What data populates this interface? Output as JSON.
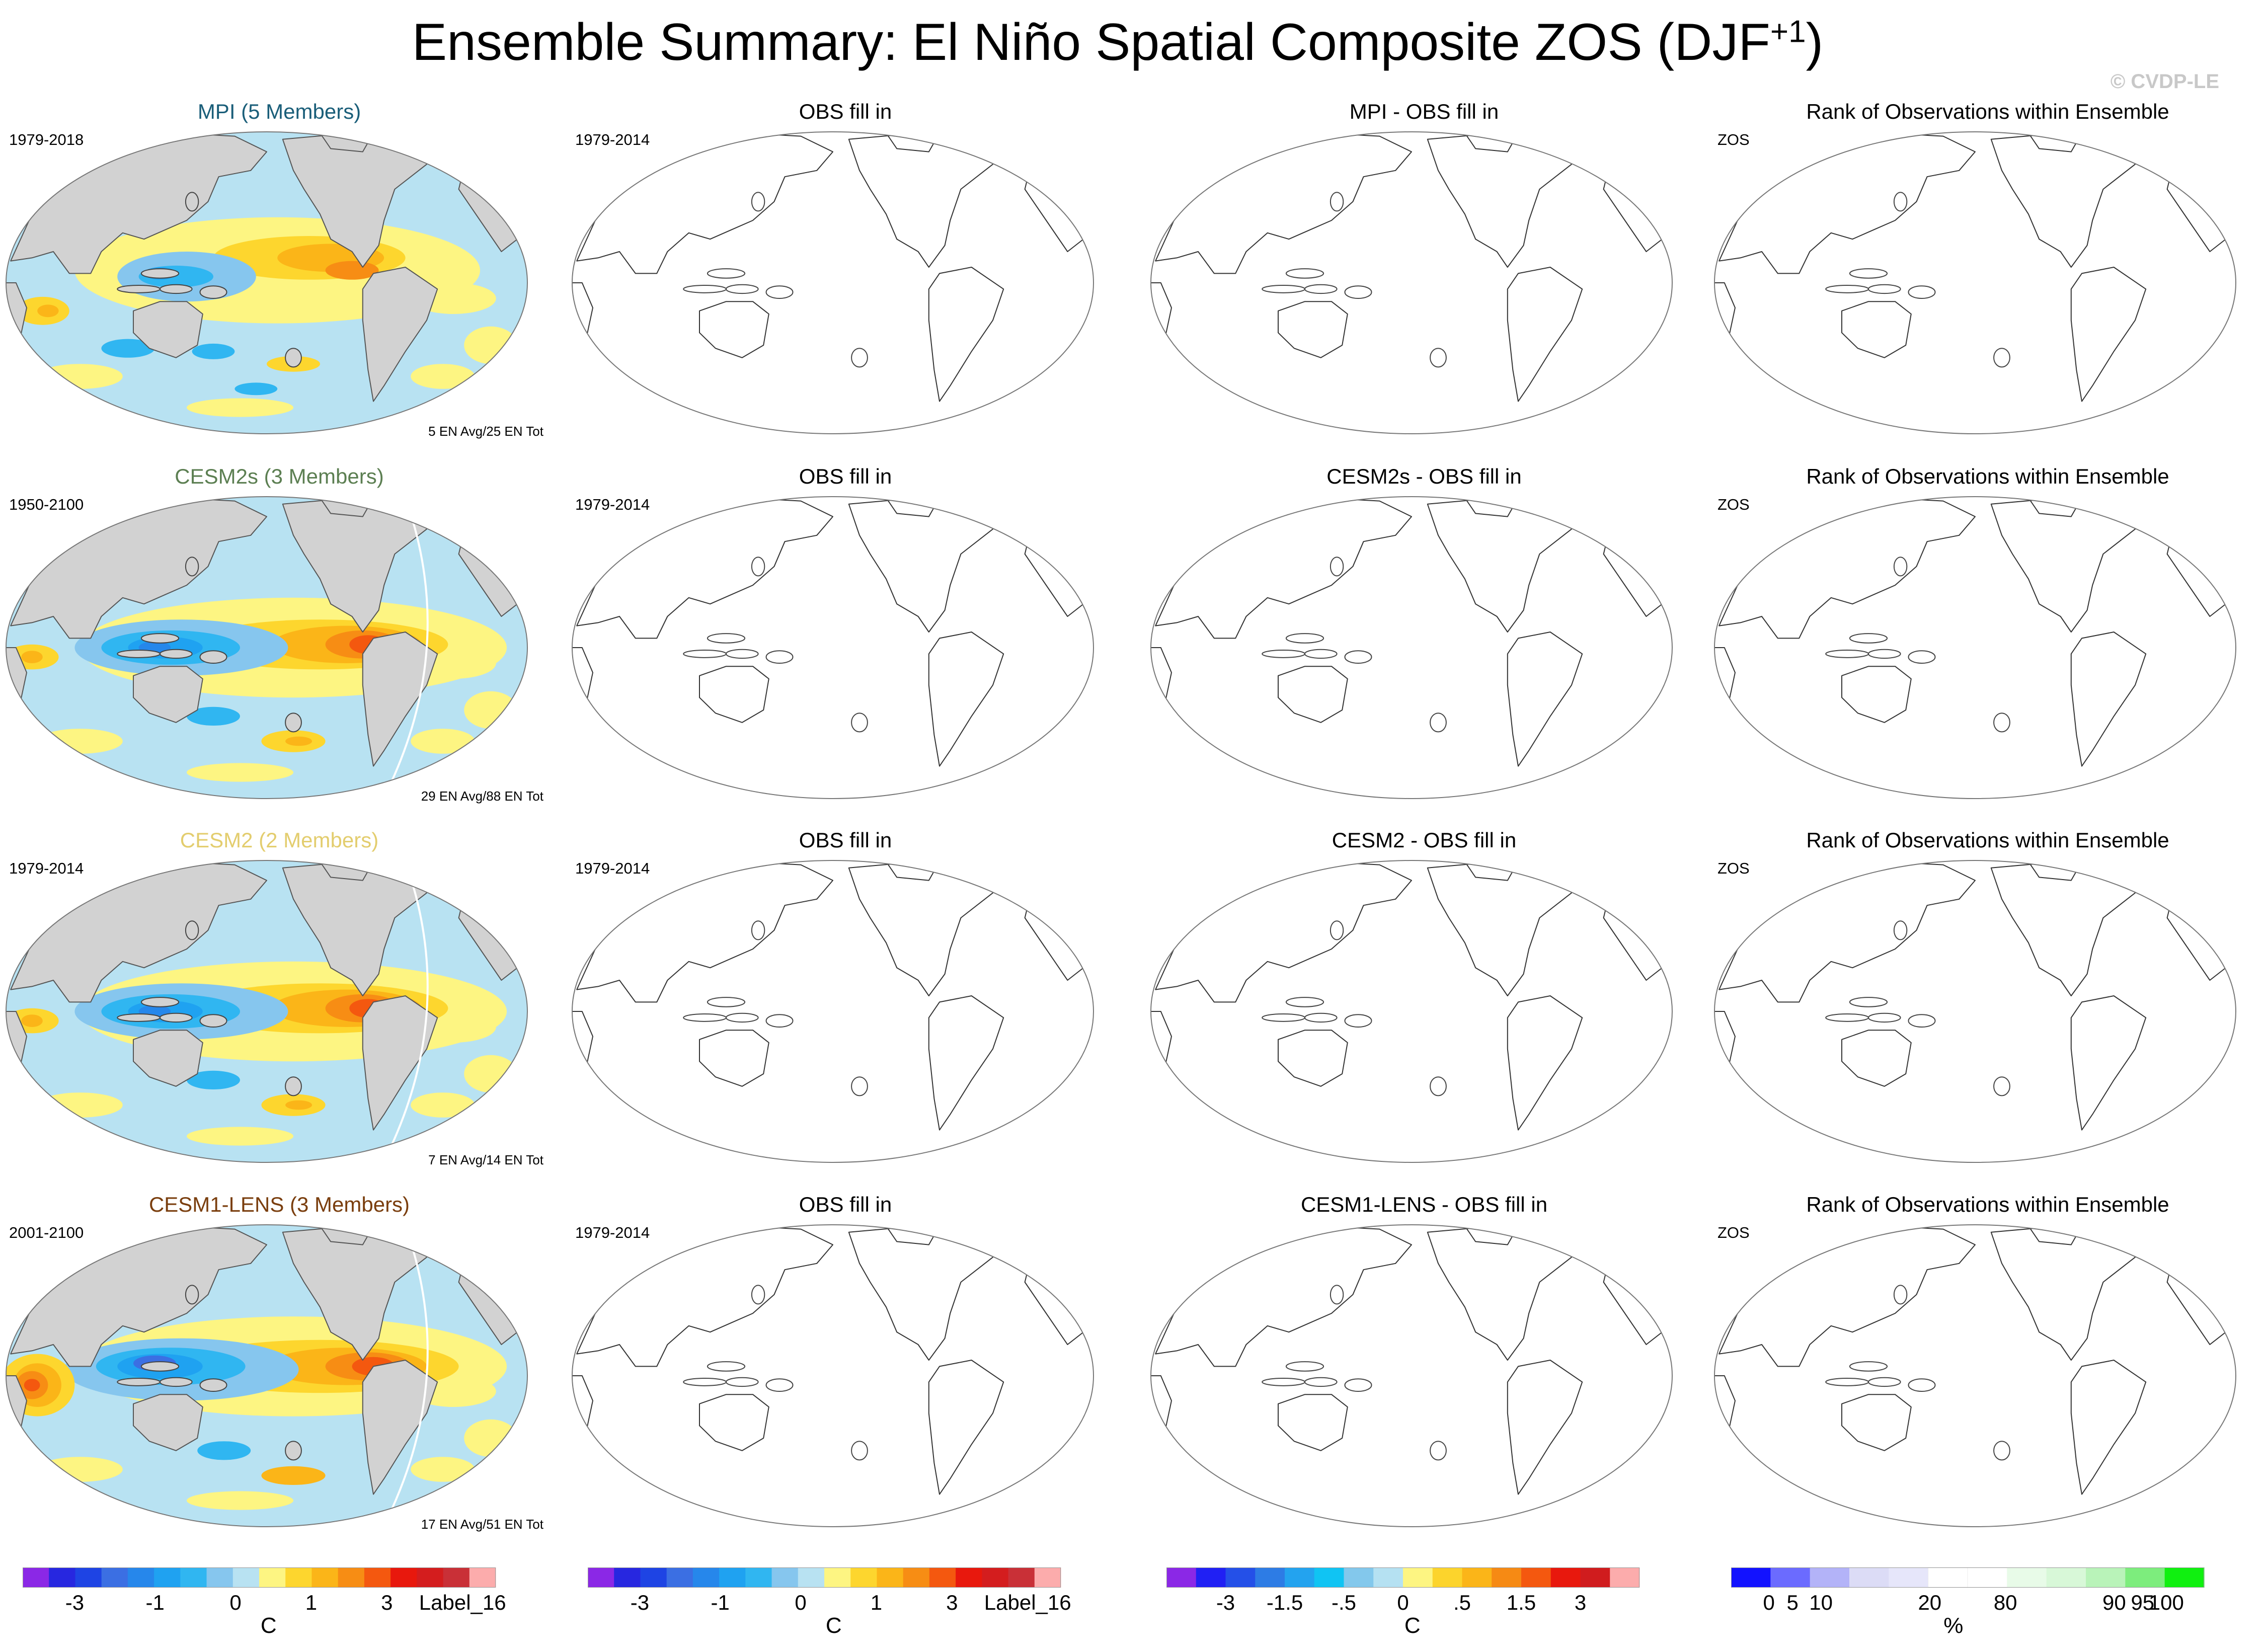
{
  "title": {
    "main": "Ensemble Summary: El Niño Spatial Composite ZOS (DJF",
    "sup": "+1",
    "close": ")"
  },
  "copyright": "© CVDP-LE",
  "chart_data": {
    "type": "panel-grid",
    "rows": [
      {
        "ensemble": {
          "title": "MPI (5 Members)",
          "color": "#1a5e79",
          "period": "1979-2018",
          "count": "5 EN Avg/25 EN Tot",
          "pattern": "weak"
        },
        "obs": {
          "title": "OBS fill in",
          "period": "1979-2014"
        },
        "diff": {
          "title": "MPI - OBS fill in"
        },
        "rank": {
          "title": "Rank of Observations within Ensemble",
          "label": "ZOS"
        }
      },
      {
        "ensemble": {
          "title": "CESM2s (3 Members)",
          "color": "#5c7f52",
          "period": "1950-2100",
          "count": "29 EN Avg/88 EN Tot",
          "pattern": "strong"
        },
        "obs": {
          "title": "OBS fill in",
          "period": "1979-2014"
        },
        "diff": {
          "title": "CESM2s - OBS fill in"
        },
        "rank": {
          "title": "Rank of Observations within Ensemble",
          "label": "ZOS"
        }
      },
      {
        "ensemble": {
          "title": "CESM2 (2 Members)",
          "color": "#e3cd6e",
          "period": "1979-2014",
          "count": "7 EN Avg/14 EN Tot",
          "pattern": "strong"
        },
        "obs": {
          "title": "OBS fill in",
          "period": "1979-2014"
        },
        "diff": {
          "title": "CESM2 - OBS fill in"
        },
        "rank": {
          "title": "Rank of Observations within Ensemble",
          "label": "ZOS"
        }
      },
      {
        "ensemble": {
          "title": "CESM1-LENS (3 Members)",
          "color": "#7a3e0e",
          "period": "2001-2100",
          "count": "17 EN Avg/51 EN Tot",
          "pattern": "very-strong"
        },
        "obs": {
          "title": "OBS fill in",
          "period": "1979-2014"
        },
        "diff": {
          "title": "CESM1-LENS - OBS fill in"
        },
        "rank": {
          "title": "Rank of Observations within Ensemble",
          "label": "ZOS"
        }
      }
    ],
    "colorbars": [
      {
        "units": "C",
        "labels": [
          "-3",
          "-1",
          "0",
          "1",
          "3",
          "Label_16"
        ],
        "colors": [
          "#8b28e6",
          "#2727e0",
          "#1e44e4",
          "#3b6fe3",
          "#2687eb",
          "#1fa2f1",
          "#30b6f1",
          "#86c6ee",
          "#b8e2f2",
          "#fdf582",
          "#fdd62e",
          "#fbb518",
          "#f78d14",
          "#f4580f",
          "#e8180d",
          "#d41d1e",
          "#c93037",
          "#fcacac"
        ]
      },
      {
        "units": "C",
        "labels": [
          "-3",
          "-1",
          "0",
          "1",
          "3",
          "Label_16"
        ],
        "colors": [
          "#8b28e6",
          "#2727e0",
          "#1e44e4",
          "#3b6fe3",
          "#2687eb",
          "#1fa2f1",
          "#30b6f1",
          "#86c6ee",
          "#b8e2f2",
          "#fdf582",
          "#fdd62e",
          "#fbb518",
          "#f78d14",
          "#f4580f",
          "#e8180d",
          "#d41d1e",
          "#c93037",
          "#fcacac"
        ]
      },
      {
        "units": "C",
        "labels": [
          "-3",
          "-1.5",
          "-.5",
          "0",
          ".5",
          "1.5",
          "3"
        ],
        "colors": [
          "#8b28e6",
          "#2020f4",
          "#2450e8",
          "#2d7ce5",
          "#23a3ef",
          "#10c4f3",
          "#83c8ec",
          "#b5e1f2",
          "#fdf582",
          "#fcd42c",
          "#fbb518",
          "#f68a14",
          "#f4580f",
          "#e8180d",
          "#d01c1e",
          "#fcacac"
        ]
      },
      {
        "units": "%",
        "labels": [
          "0",
          "5",
          "10",
          "20",
          "80",
          "90",
          "95",
          "100"
        ],
        "colors": [
          "#1212ff",
          "#6b6bff",
          "#b3b3f8",
          "#dcdcf6",
          "#e6e6fa",
          "#ffffff",
          "#ffffff",
          "#e8fbe8",
          "#d8f8d8",
          "#b9f3b9",
          "#7ded7d",
          "#10f010"
        ]
      }
    ]
  }
}
